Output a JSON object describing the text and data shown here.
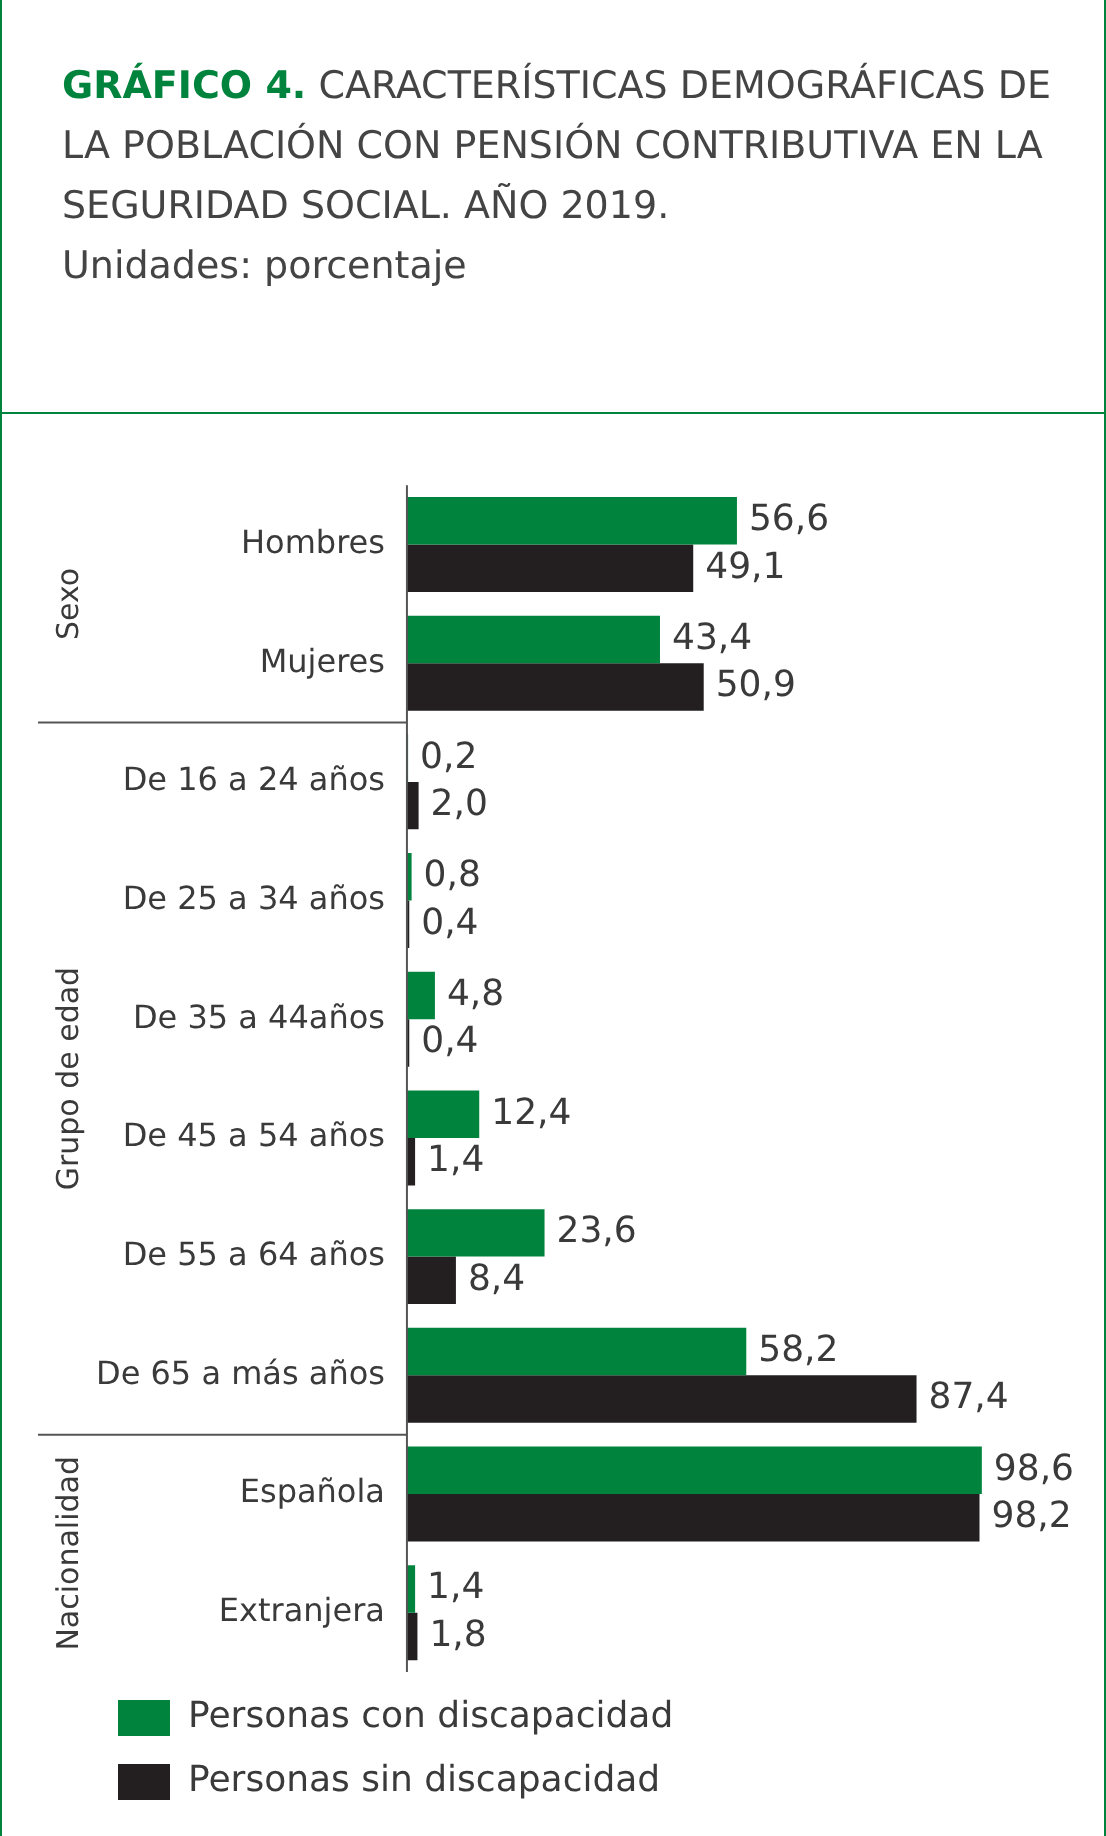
{
  "chart_data": {
    "type": "bar",
    "orientation": "horizontal",
    "title": "GRÁFICO 4. CARACTERÍSTICAS DEMOGRÁFICAS DE LA POBLACIÓN CON PENSIÓN CONTRIBUTIVA EN LA SEGURIDAD SOCIAL. AÑO 2019.",
    "subtitle": "Unidades: porcentaje",
    "categories": [
      "Hombres",
      "Mujeres",
      "De 16 a 24 años",
      "De 25 a 34 años",
      "De 35 a 44años",
      "De 45 a 54 años",
      "De 55 a 64 años",
      "De 65 a más años",
      "Española",
      "Extranjera"
    ],
    "series": [
      {
        "name": "Personas con discapacidad",
        "color": "#00843d",
        "values": [
          56.6,
          43.4,
          0.2,
          0.8,
          4.8,
          12.4,
          23.6,
          58.2,
          98.6,
          1.4
        ],
        "value_labels": [
          "56,6",
          "43,4",
          "0,2",
          "0,8",
          "4,8",
          "12,4",
          "23,6",
          "58,2",
          "98,6",
          "1,4"
        ]
      },
      {
        "name": "Personas sin discapacidad",
        "color": "#231f20",
        "values": [
          49.1,
          50.9,
          2.0,
          0.4,
          0.4,
          1.4,
          8.4,
          87.4,
          98.2,
          1.8
        ],
        "value_labels": [
          "49,1",
          "50,9",
          "2,0",
          "0,4",
          "0,4",
          "1,4",
          "8,4",
          "87,4",
          "98,2",
          "1,8"
        ]
      }
    ],
    "annotations": [
      "Sexo",
      "Grupo de edad",
      "Nacionalidad"
    ],
    "tick_labels": "y",
    "legend": "bottom"
  }
}
